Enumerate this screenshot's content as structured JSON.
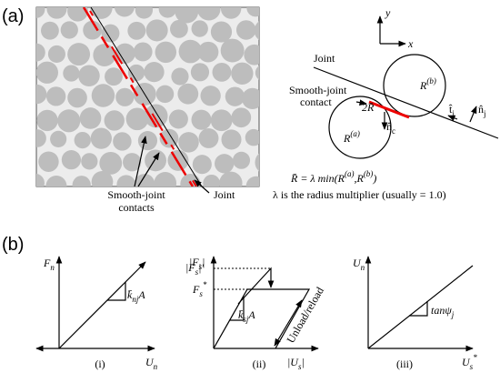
{
  "panel_a": {
    "label": "(a)",
    "left": {
      "contacts_label_1": "Smooth-joint",
      "contacts_label_2": "contacts",
      "joint_label": "Joint"
    },
    "right": {
      "axis_y": "y",
      "axis_x": "x",
      "joint_label": "Joint",
      "contact_label_1": "Smooth-joint",
      "contact_label_2": "contact",
      "radius_b": {
        "main": "R",
        "sup": "(b)"
      },
      "radius_a": {
        "main": "R",
        "sup": "(a)"
      },
      "diameter": {
        "main": "2",
        "var": "R̄"
      },
      "normal_c": {
        "main": "n̂",
        "sub": "c"
      },
      "tangent_j": {
        "main": "t̂",
        "sub": "j"
      },
      "normal_j": {
        "main": "n̂",
        "sub": "j"
      },
      "formula": {
        "lhs": "R̄ = λ min(",
        "a": "R",
        "a_sup": "(a)",
        "comma": ",",
        "b": "R",
        "b_sup": "(b)",
        "close": ")"
      },
      "note": "λ is the radius multiplier (usually = 1.0)"
    }
  },
  "panel_b": {
    "label": "(b)",
    "i": {
      "y_label": {
        "main": "F",
        "sub": "n"
      },
      "x_label": {
        "main": "U",
        "sub": "n"
      },
      "slope": {
        "main": "k̄",
        "sub": "nj",
        "tail": "A"
      },
      "caption": "(i)"
    },
    "ii": {
      "y_label": {
        "main": "|F",
        "sub": "s",
        "tail": "|"
      },
      "peak": {
        "main": "|F",
        "sub": "s",
        "tail": "|'"
      },
      "strength": {
        "main": "F",
        "sub": "s",
        "sup": "*"
      },
      "slope": {
        "main": "k̄",
        "sub": "sj",
        "tail": "A"
      },
      "path_label": "Unload/reload",
      "x_label": {
        "main": "|U",
        "sub": "s",
        "tail": "|"
      },
      "caption": "(ii)"
    },
    "iii": {
      "y_label": {
        "main": "U",
        "sub": "n"
      },
      "slope": {
        "main": "tanψ",
        "sub": "j"
      },
      "x_label": {
        "main": "U",
        "sub": "s",
        "sup": "*"
      },
      "caption": "(iii)"
    }
  }
}
